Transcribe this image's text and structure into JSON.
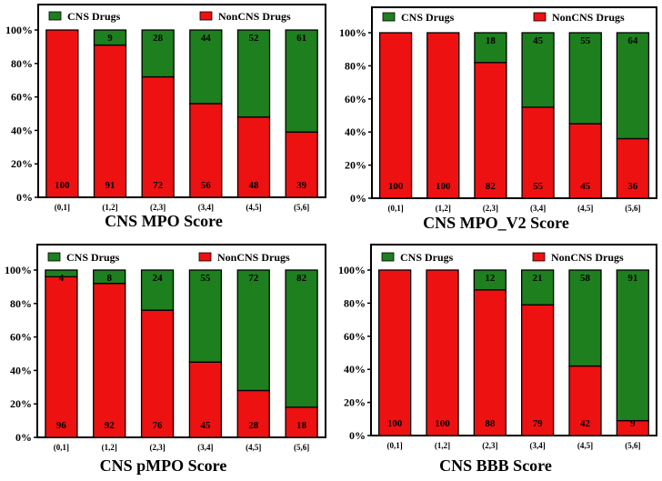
{
  "colors": {
    "cns": "#1e7f1e",
    "noncns": "#ee1111",
    "frame": "#000000"
  },
  "chart_data": [
    {
      "type": "bar",
      "stacked": true,
      "title": "CNS MPO Score",
      "categories": [
        "(0,1]",
        "(1,2]",
        "(2,3]",
        "(3,4]",
        "(4,5]",
        "(5,6]"
      ],
      "y_ticks": [
        "0%",
        "20%",
        "40%",
        "60%",
        "80%",
        "100%"
      ],
      "ylim": [
        0,
        100
      ],
      "legend": [
        "CNS Drugs",
        "NonCNS Drugs"
      ],
      "legend_position": "top",
      "series": [
        {
          "name": "NonCNS Drugs",
          "values": [
            100,
            91,
            72,
            56,
            48,
            39
          ],
          "labels": [
            "100",
            "91",
            "72",
            "56",
            "48",
            "39"
          ]
        },
        {
          "name": "CNS Drugs",
          "values": [
            0,
            9,
            28,
            44,
            52,
            61
          ],
          "labels": [
            "",
            "9",
            "28",
            "44",
            "52",
            "61"
          ]
        }
      ]
    },
    {
      "type": "bar",
      "stacked": true,
      "title": "CNS MPO_V2 Score",
      "categories": [
        "(0,1]",
        "(1,2]",
        "(2,3]",
        "(3,4]",
        "(4,5]",
        "(5,6]"
      ],
      "y_ticks": [
        "0%",
        "20%",
        "40%",
        "60%",
        "80%",
        "100%"
      ],
      "ylim": [
        0,
        100
      ],
      "legend": [
        "CNS Drugs",
        "NonCNS Drugs"
      ],
      "legend_position": "top",
      "series": [
        {
          "name": "NonCNS Drugs",
          "values": [
            100,
            100,
            82,
            55,
            45,
            36
          ],
          "labels": [
            "100",
            "100",
            "82",
            "55",
            "45",
            "36"
          ]
        },
        {
          "name": "CNS Drugs",
          "values": [
            0,
            0,
            18,
            45,
            55,
            64
          ],
          "labels": [
            "",
            "",
            "18",
            "45",
            "55",
            "64"
          ]
        }
      ]
    },
    {
      "type": "bar",
      "stacked": true,
      "title": "CNS pMPO Score",
      "categories": [
        "(0,1]",
        "(1,2]",
        "(2,3]",
        "(3,4]",
        "(4,5]",
        "(5,6]"
      ],
      "y_ticks": [
        "0%",
        "20%",
        "40%",
        "60%",
        "80%",
        "100%"
      ],
      "ylim": [
        0,
        100
      ],
      "legend": [
        "CNS Drugs",
        "NonCNS Drugs"
      ],
      "legend_position": "top",
      "series": [
        {
          "name": "NonCNS Drugs",
          "values": [
            96,
            92,
            76,
            45,
            28,
            18
          ],
          "labels": [
            "96",
            "92",
            "76",
            "45",
            "28",
            "18"
          ]
        },
        {
          "name": "CNS Drugs",
          "values": [
            4,
            8,
            24,
            55,
            72,
            82
          ],
          "labels": [
            "4",
            "8",
            "24",
            "55",
            "72",
            "82"
          ]
        }
      ]
    },
    {
      "type": "bar",
      "stacked": true,
      "title": "CNS BBB Score",
      "categories": [
        "(0,1]",
        "(1,2]",
        "(2,3]",
        "(3,4]",
        "(4,5]",
        "(5,6]"
      ],
      "y_ticks": [
        "0%",
        "20%",
        "40%",
        "60%",
        "80%",
        "100%"
      ],
      "ylim": [
        0,
        100
      ],
      "legend": [
        "CNS Drugs",
        "NonCNS Drugs"
      ],
      "legend_position": "top",
      "series": [
        {
          "name": "NonCNS Drugs",
          "values": [
            100,
            100,
            88,
            79,
            42,
            9
          ],
          "labels": [
            "100",
            "100",
            "88",
            "79",
            "42",
            "9"
          ]
        },
        {
          "name": "CNS Drugs",
          "values": [
            0,
            0,
            12,
            21,
            58,
            91
          ],
          "labels": [
            "",
            "",
            "12",
            "21",
            "58",
            "91"
          ]
        }
      ]
    }
  ]
}
